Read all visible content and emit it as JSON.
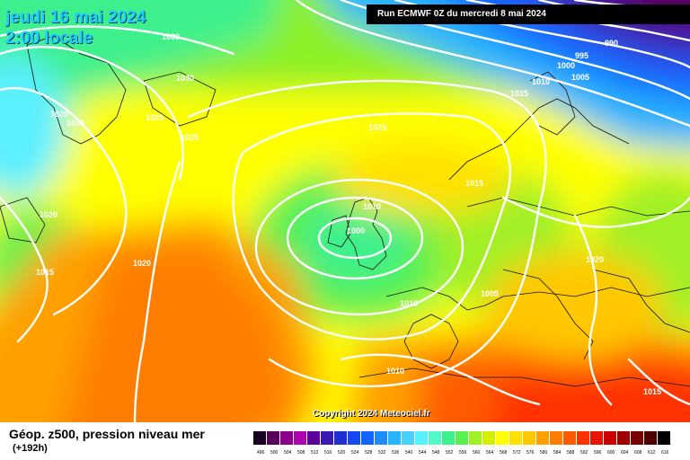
{
  "header": {
    "date": "jeudi 16 mai 2024",
    "local_time": "2:00 locale",
    "run": "Run ECMWF 0Z du mercredi 8 mai 2024"
  },
  "footer": {
    "title": "Géop. z500, pression niveau mer",
    "lead": "(+192h)",
    "copyright": "Copyright 2024 Meteociel.fr"
  },
  "scale": {
    "values": [
      "496",
      "500",
      "504",
      "508",
      "512",
      "516",
      "520",
      "524",
      "528",
      "532",
      "536",
      "540",
      "544",
      "548",
      "552",
      "556",
      "560",
      "564",
      "568",
      "572",
      "576",
      "580",
      "584",
      "588",
      "592",
      "596",
      "600",
      "604",
      "608",
      "612",
      "616"
    ],
    "colors": [
      "#1a0020",
      "#5a005a",
      "#8a008a",
      "#b000b0",
      "#5c0096",
      "#3a1ab4",
      "#1f2ed2",
      "#1448f0",
      "#1464ff",
      "#1e8cff",
      "#28b4ff",
      "#46d2ff",
      "#5af0ff",
      "#50fac8",
      "#3cf08c",
      "#5af050",
      "#a0f028",
      "#d2f000",
      "#ffff00",
      "#ffe100",
      "#ffc800",
      "#ffa000",
      "#ff7d00",
      "#ff5a00",
      "#ff3200",
      "#e61400",
      "#c80000",
      "#a00000",
      "#780000",
      "#500000",
      "#000000"
    ]
  },
  "isobar_labels": [
    "1030",
    "1030",
    "1020",
    "1020",
    "1025",
    "1025",
    "1020",
    "1020",
    "1015",
    "1020",
    "990",
    "995",
    "1000",
    "1005",
    "1010",
    "1015",
    "1015",
    "1010",
    "1005",
    "1000",
    "1020",
    "1005",
    "1010",
    "1010",
    "1015"
  ]
}
